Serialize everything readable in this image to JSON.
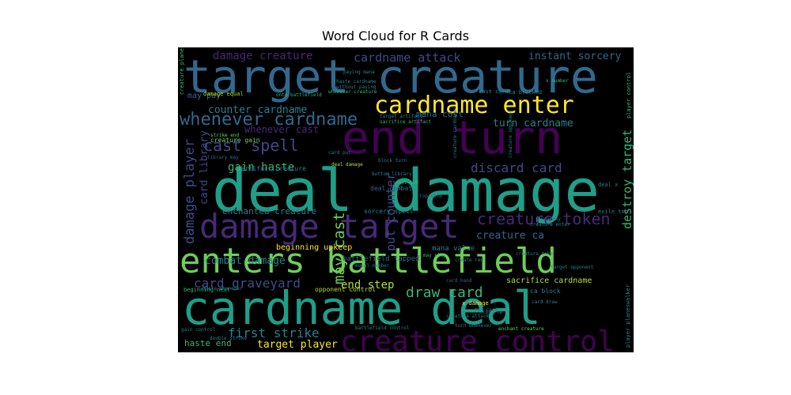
{
  "chart_data": {
    "type": "wordcloud",
    "title": "Word Cloud for R Cards",
    "background": "#000000",
    "palette": [
      "#440154",
      "#482878",
      "#3e4a89",
      "#31688e",
      "#26828e",
      "#1f9e89",
      "#35b779",
      "#6ece58",
      "#b5de2b",
      "#fde725"
    ],
    "words": [
      {
        "text": "deal damage",
        "color": "#1f9e89"
      },
      {
        "text": "cardname deal",
        "color": "#1f9e89"
      },
      {
        "text": "target creature",
        "color": "#31688e"
      },
      {
        "text": "end turn",
        "color": "#440154"
      },
      {
        "text": "enters battlefield",
        "color": "#6ece58"
      },
      {
        "text": "damage target",
        "color": "#482878"
      },
      {
        "text": "creature control",
        "color": "#440154"
      },
      {
        "text": "cardname enter",
        "color": "#fde725"
      },
      {
        "text": "whenever cardname",
        "color": "#31688e"
      },
      {
        "text": "creature token",
        "color": "#482878"
      },
      {
        "text": "cast spell",
        "color": "#3e4a89"
      },
      {
        "text": "draw card",
        "color": "#35b779"
      },
      {
        "text": "discard card",
        "color": "#3e4a89"
      },
      {
        "text": "card graveyard",
        "color": "#3e4a89"
      },
      {
        "text": "damage player",
        "color": "#3e4a89"
      },
      {
        "text": "first strike",
        "color": "#26828e"
      },
      {
        "text": "cardname attack",
        "color": "#3e4a89"
      },
      {
        "text": "damage creature",
        "color": "#482878"
      },
      {
        "text": "instant sorcery",
        "color": "#31688e"
      },
      {
        "text": "turn cardname",
        "color": "#26828e"
      },
      {
        "text": "destroy target",
        "color": "#35b779"
      },
      {
        "text": "end step",
        "color": "#b5de2b"
      },
      {
        "text": "may cast",
        "color": "#6ece58"
      },
      {
        "text": "put counter",
        "color": "#3e4a89"
      },
      {
        "text": "gain haste",
        "color": "#35b779"
      },
      {
        "text": "counter cardname",
        "color": "#26828e"
      },
      {
        "text": "whenever cast",
        "color": "#482878"
      },
      {
        "text": "card library",
        "color": "#3e4a89"
      },
      {
        "text": "combat damage",
        "color": "#26828e"
      },
      {
        "text": "creature ca",
        "color": "#31688e"
      },
      {
        "text": "target player",
        "color": "#fde725"
      },
      {
        "text": "haste end",
        "color": "#35b779"
      },
      {
        "text": "enchanted creature",
        "color": "#26828e"
      },
      {
        "text": "mana cost",
        "color": "#31688e"
      },
      {
        "text": "may pay",
        "color": "#31688e"
      },
      {
        "text": "sacrifice cardname",
        "color": "#b5de2b"
      },
      {
        "text": "beginning upkeep",
        "color": "#fde725"
      },
      {
        "text": "battlefield tapped",
        "color": "#31688e"
      },
      {
        "text": "mana value",
        "color": "#26828e"
      },
      {
        "text": "opponent control",
        "color": "#b5de2b"
      },
      {
        "text": "ca block",
        "color": "#26828e"
      },
      {
        "text": "sorcery spell",
        "color": "#26828e"
      },
      {
        "text": "deal combat",
        "color": "#31688e"
      },
      {
        "text": "artifact creature",
        "color": "#26828e"
      },
      {
        "text": "creature gain",
        "color": "#6ece58"
      },
      {
        "text": "damage equal",
        "color": "#b5de2b"
      },
      {
        "text": "cast card",
        "color": "#26828e"
      },
      {
        "text": "ca blocked",
        "color": "#26828e"
      },
      {
        "text": "player control",
        "color": "#35b779"
      },
      {
        "text": "creature planeswalker",
        "color": "#35b779"
      },
      {
        "text": "player planeswalker",
        "color": "#26828e"
      },
      {
        "text": "deal x",
        "color": "#26828e"
      },
      {
        "text": "exile top",
        "color": "#26828e"
      },
      {
        "text": "x damage",
        "color": "#fde725"
      },
      {
        "text": "beginning next",
        "color": "#35b779"
      },
      {
        "text": "gain control",
        "color": "#26828e"
      },
      {
        "text": "enchant creature",
        "color": "#6ece58"
      },
      {
        "text": "turn whenever",
        "color": "#26828e"
      },
      {
        "text": "haste whenever",
        "color": "#26828e"
      },
      {
        "text": "next end",
        "color": "#35b779"
      },
      {
        "text": "top card",
        "color": "#31688e"
      },
      {
        "text": "card hand",
        "color": "#31688e"
      },
      {
        "text": "cost le",
        "color": "#26828e"
      },
      {
        "text": "two card",
        "color": "#26828e"
      },
      {
        "text": "creature attack",
        "color": "#26828e"
      },
      {
        "text": "battlefield control",
        "color": "#26828e"
      },
      {
        "text": "double strike",
        "color": "#26828e"
      },
      {
        "text": "creature enter",
        "color": "#26828e"
      },
      {
        "text": "creature opponent",
        "color": "#26828e"
      },
      {
        "text": "creature cardname",
        "color": "#26828e"
      },
      {
        "text": "may play",
        "color": "#35b779"
      },
      {
        "text": "block turn",
        "color": "#26828e"
      },
      {
        "text": "bottom library",
        "color": "#26828e"
      },
      {
        "text": "deal damage",
        "color": "#b5de2b"
      },
      {
        "text": "library may",
        "color": "#31688e"
      },
      {
        "text": "strike end",
        "color": "#6ece58"
      },
      {
        "text": "target artifact",
        "color": "#26828e"
      },
      {
        "text": "sacrifice artifact",
        "color": "#35b779"
      },
      {
        "text": "whenever creature",
        "color": "#35b779"
      },
      {
        "text": "onto battlefield",
        "color": "#35b779"
      },
      {
        "text": "without paying",
        "color": "#26828e"
      },
      {
        "text": "paying mana",
        "color": "#26828e"
      },
      {
        "text": "haste cardname",
        "color": "#26828e"
      },
      {
        "text": "x number",
        "color": "#35b779"
      },
      {
        "text": "equal number",
        "color": "#26828e"
      },
      {
        "text": "create red",
        "color": "#26828e"
      },
      {
        "text": "card draw",
        "color": "#26828e"
      },
      {
        "text": "creature toke",
        "color": "#26828e"
      },
      {
        "text": "target opponent",
        "color": "#26828e"
      },
      {
        "text": "turn may",
        "color": "#26828e"
      },
      {
        "text": "card put",
        "color": "#26828e"
      }
    ]
  }
}
